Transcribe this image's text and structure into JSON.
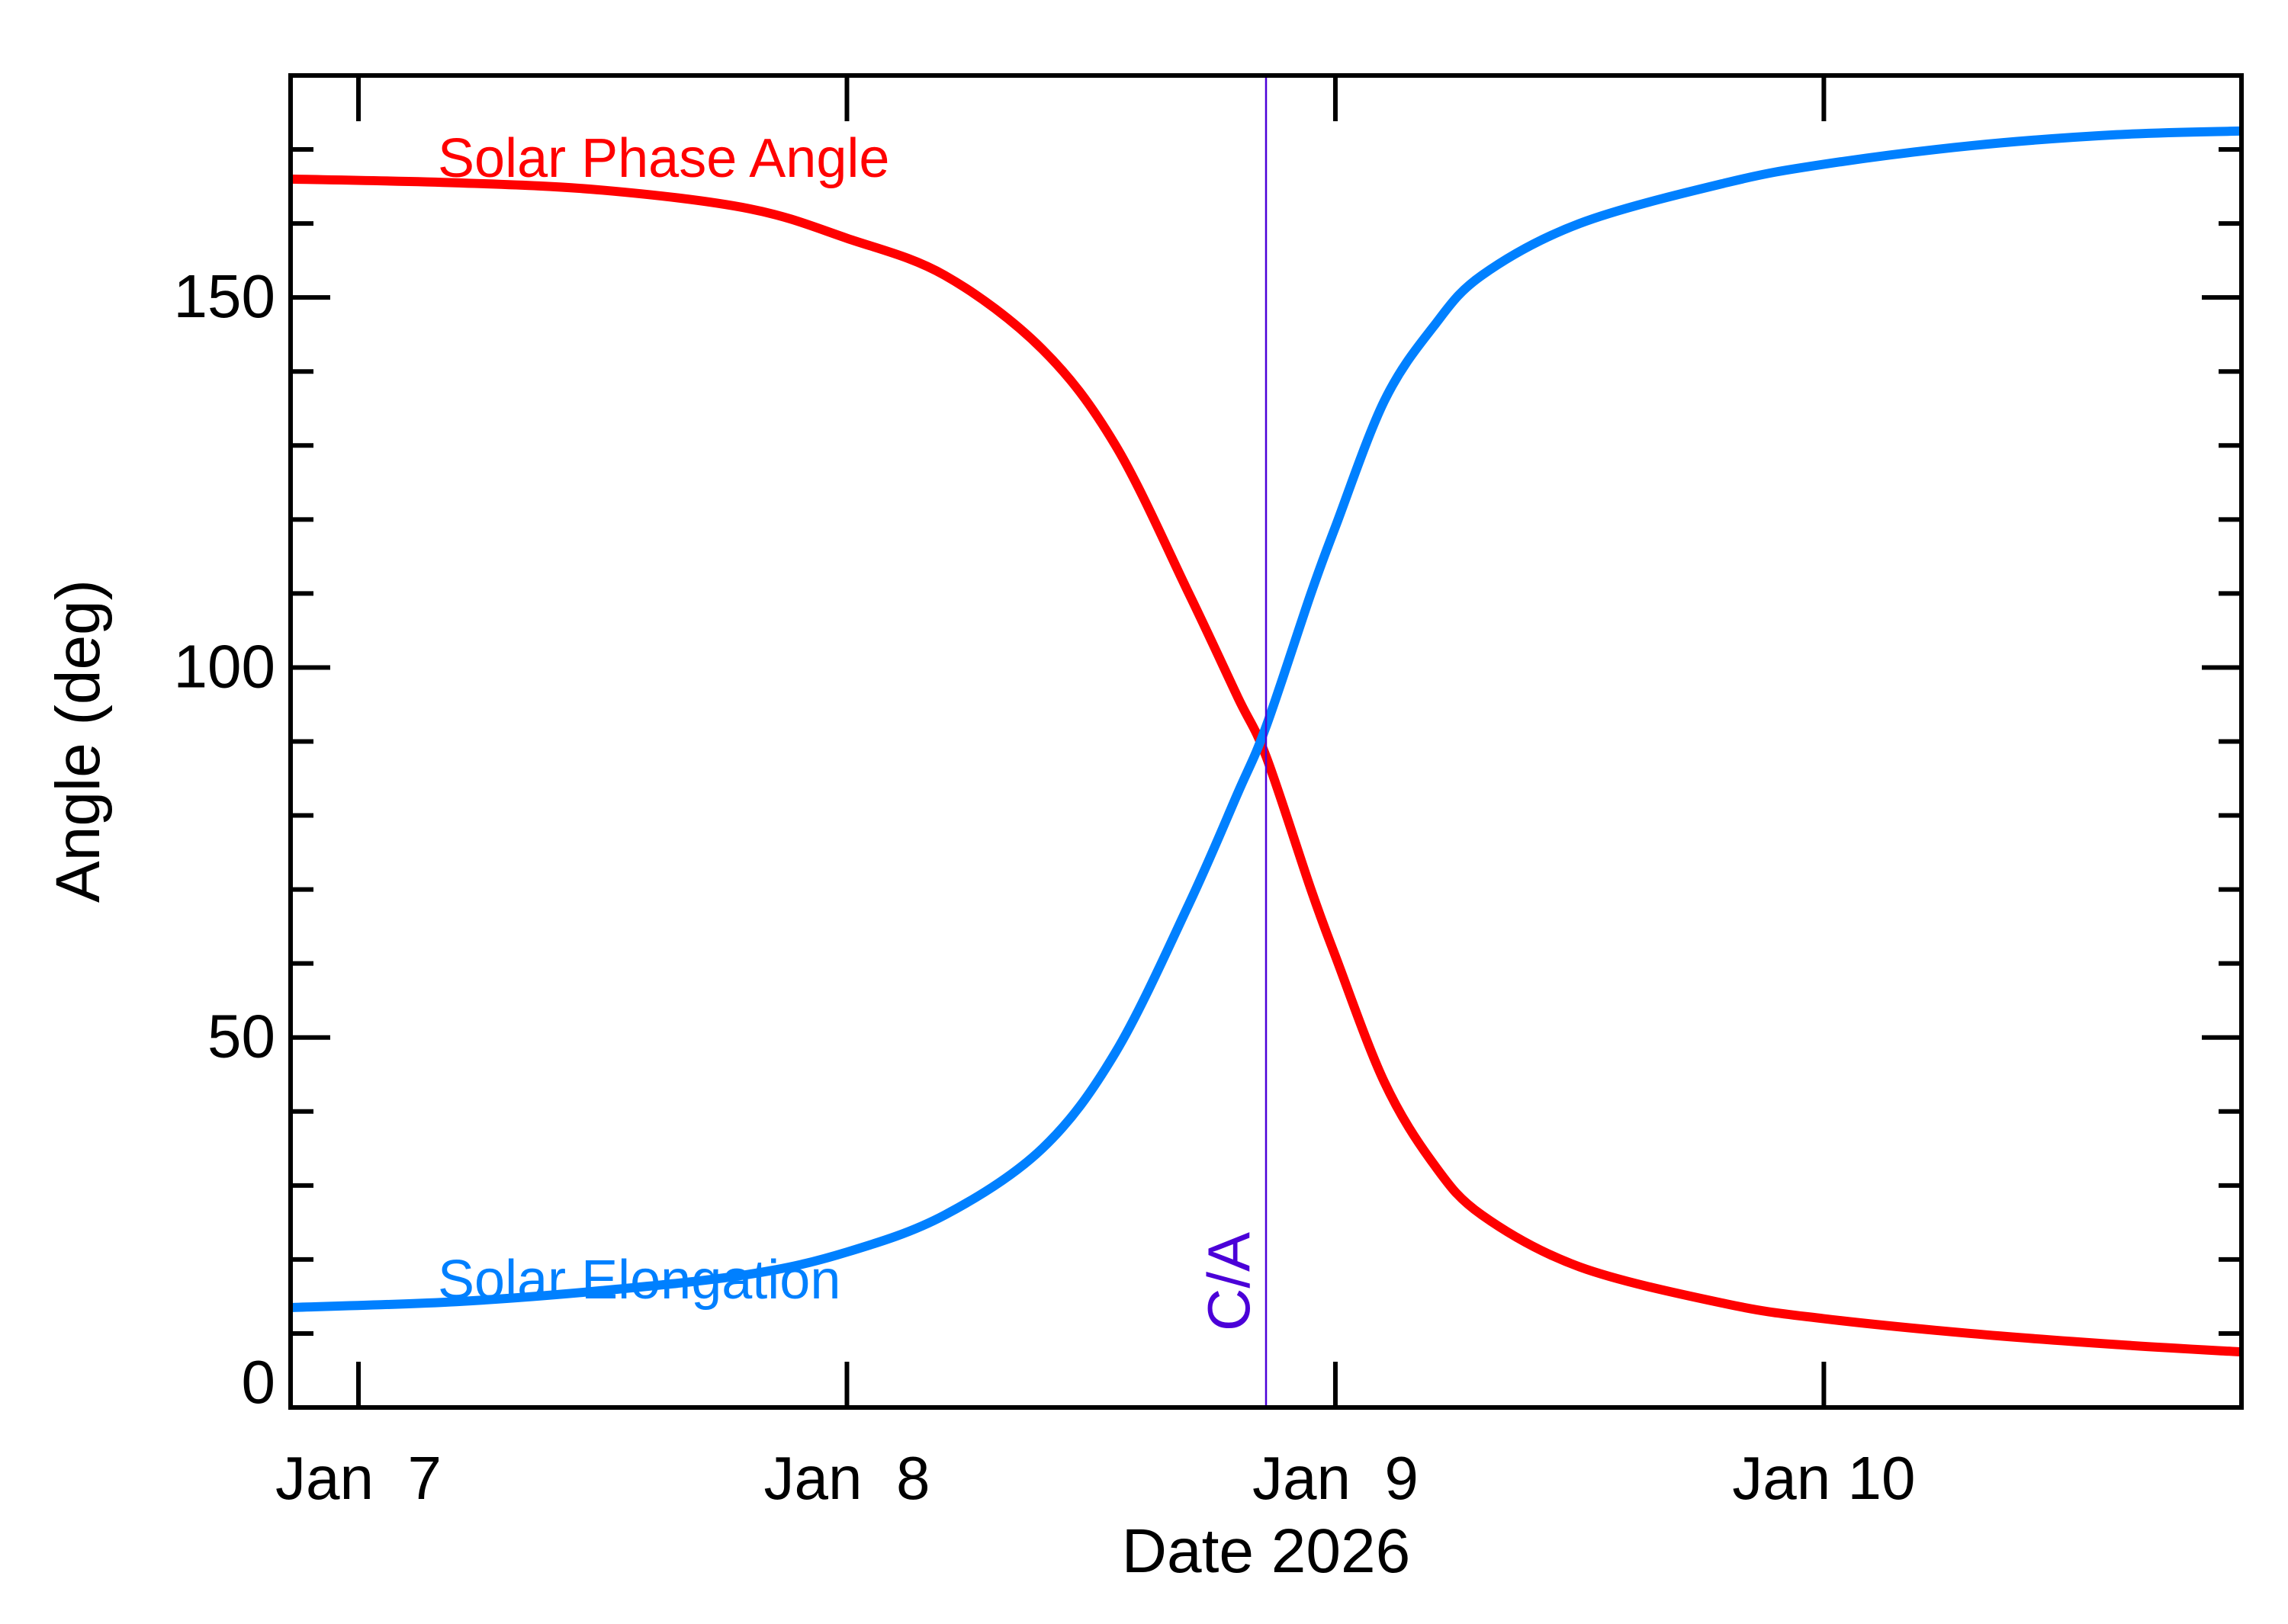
{
  "chart_data": {
    "type": "line",
    "xlabel": "Date 2026",
    "ylabel": "Angle (deg)",
    "xlim": [
      -0.139,
      3.855
    ],
    "ylim": [
      0,
      180
    ],
    "x_ticks": [
      {
        "value": 0,
        "label": "Jan  7"
      },
      {
        "value": 1,
        "label": "Jan  8"
      },
      {
        "value": 2,
        "label": "Jan  9"
      },
      {
        "value": 3,
        "label": "Jan 10"
      }
    ],
    "y_ticks": [
      {
        "value": 0,
        "label": "0"
      },
      {
        "value": 50,
        "label": "50"
      },
      {
        "value": 100,
        "label": "100"
      },
      {
        "value": 150,
        "label": "150"
      }
    ],
    "y_minor_step": 10,
    "grid": false,
    "x_unit_note": "days after Jan 7 2026 00:00",
    "series": [
      {
        "name": "Solar Phase Angle",
        "color": "#ff0000",
        "x": [
          -0.139,
          0.2,
          0.5,
          0.8,
          1.0,
          1.2,
          1.4,
          1.55,
          1.7,
          1.8,
          1.858,
          1.95,
          2.0,
          2.1,
          2.2,
          2.3,
          2.5,
          2.8,
          3.0,
          3.3,
          3.6,
          3.855
        ],
        "y": [
          166,
          165.5,
          164.5,
          162,
          158,
          153,
          143,
          130,
          110,
          96,
          88,
          70,
          61,
          44,
          33,
          26,
          19,
          14,
          12,
          10,
          8.5,
          7.5
        ]
      },
      {
        "name": "Solar Elongation",
        "color": "#0080ff",
        "x": [
          -0.139,
          0.2,
          0.5,
          0.8,
          1.0,
          1.2,
          1.4,
          1.55,
          1.7,
          1.8,
          1.858,
          1.95,
          2.0,
          2.1,
          2.2,
          2.3,
          2.5,
          2.8,
          3.0,
          3.3,
          3.6,
          3.855
        ],
        "y": [
          13.5,
          14.3,
          15.8,
          18,
          21,
          26,
          35,
          48,
          68,
          83,
          92,
          110,
          119,
          136,
          146,
          153,
          160,
          165.5,
          168,
          170.5,
          172,
          172.5
        ]
      }
    ],
    "annotations": [
      {
        "text": "C/A",
        "x": 1.858,
        "color": "#4b00d8",
        "type": "vertical-line"
      }
    ]
  }
}
